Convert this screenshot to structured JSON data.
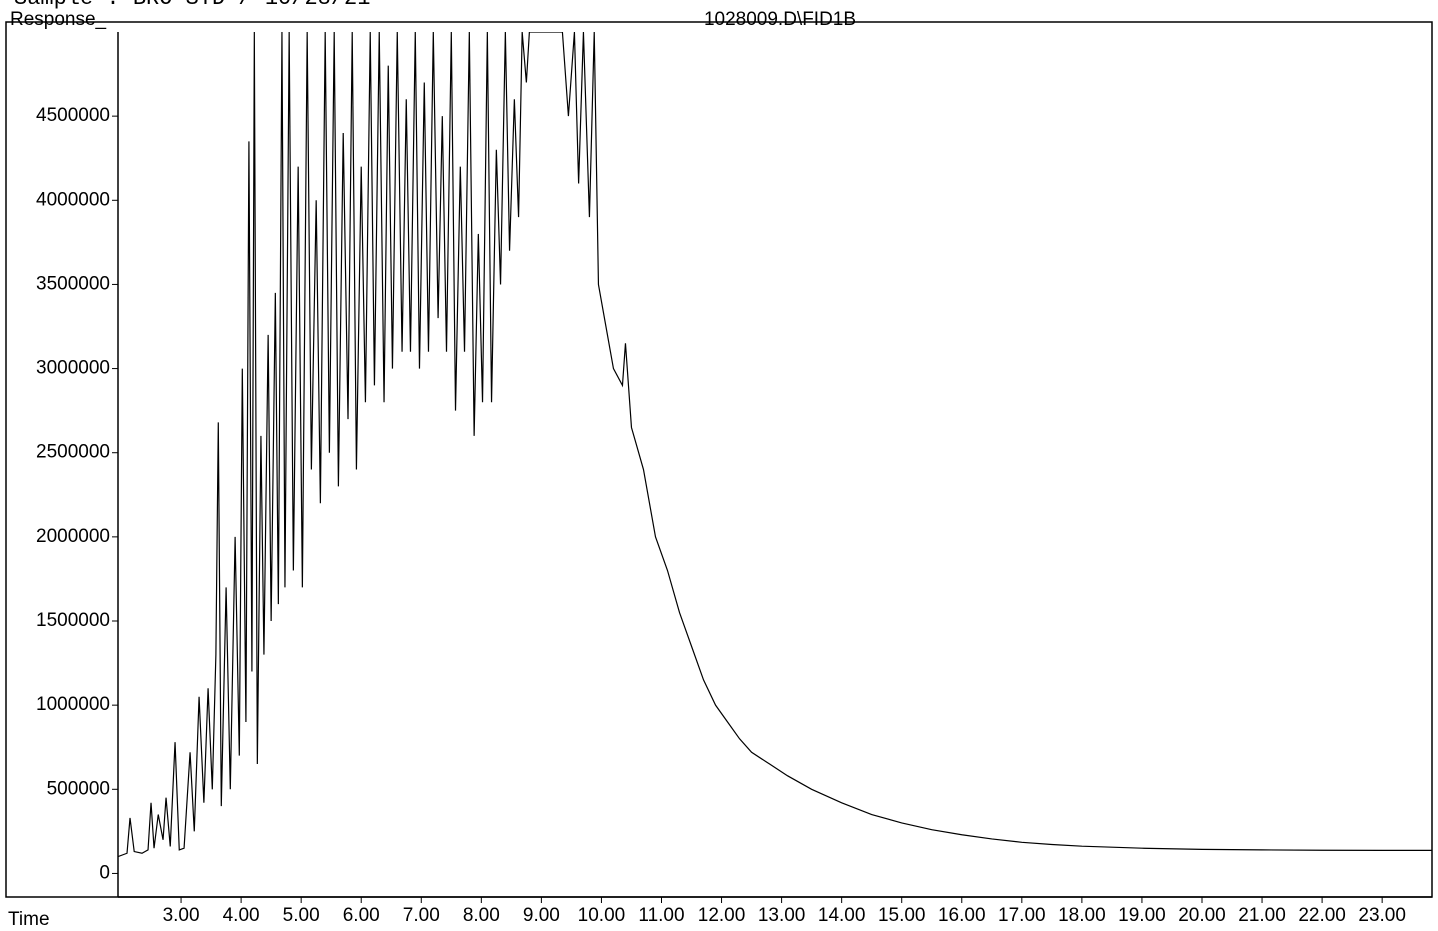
{
  "chart_data": {
    "type": "line",
    "header": "Sample      : BRO STD / 10/28/21",
    "title": "1028009.D\\FID1B",
    "ylabel": "Response_",
    "xlabel": "Time",
    "color": "#000000",
    "xlim": [
      1.95,
      23.83
    ],
    "ylim": [
      -140000,
      5000000
    ],
    "yticks": [
      0,
      500000,
      1000000,
      1500000,
      2000000,
      2500000,
      3000000,
      3500000,
      4000000,
      4500000
    ],
    "xticks": [
      {
        "value": 3,
        "label": "3.00"
      },
      {
        "value": 4,
        "label": "4.00"
      },
      {
        "value": 5,
        "label": "5.00"
      },
      {
        "value": 6,
        "label": "6.00"
      },
      {
        "value": 7,
        "label": "7.00"
      },
      {
        "value": 8,
        "label": "8.00"
      },
      {
        "value": 9,
        "label": "9.00"
      },
      {
        "value": 10,
        "label": "10.00"
      },
      {
        "value": 11,
        "label": "11.00"
      },
      {
        "value": 12,
        "label": "12.00"
      },
      {
        "value": 13,
        "label": "13.00"
      },
      {
        "value": 14,
        "label": "14.00"
      },
      {
        "value": 15,
        "label": "15.00"
      },
      {
        "value": 16,
        "label": "16.00"
      },
      {
        "value": 17,
        "label": "17.00"
      },
      {
        "value": 18,
        "label": "18.00"
      },
      {
        "value": 19,
        "label": "19.00"
      },
      {
        "value": 20,
        "label": "20.00"
      },
      {
        "value": 21,
        "label": "21.00"
      },
      {
        "value": 22,
        "label": "22.00"
      },
      {
        "value": 23,
        "label": "23.00"
      }
    ],
    "x": [
      1.95,
      2.1,
      2.15,
      2.22,
      2.35,
      2.45,
      2.5,
      2.55,
      2.62,
      2.7,
      2.75,
      2.82,
      2.9,
      2.97,
      3.05,
      3.15,
      3.22,
      3.3,
      3.38,
      3.45,
      3.52,
      3.58,
      3.62,
      3.67,
      3.75,
      3.82,
      3.9,
      3.97,
      4.02,
      4.08,
      4.13,
      4.18,
      4.22,
      4.27,
      4.33,
      4.38,
      4.45,
      4.5,
      4.57,
      4.62,
      4.68,
      4.73,
      4.8,
      4.87,
      4.95,
      5.02,
      5.1,
      5.17,
      5.25,
      5.32,
      5.4,
      5.47,
      5.55,
      5.62,
      5.7,
      5.78,
      5.85,
      5.92,
      6.0,
      6.07,
      6.15,
      6.22,
      6.3,
      6.38,
      6.45,
      6.52,
      6.6,
      6.68,
      6.75,
      6.82,
      6.9,
      6.97,
      7.05,
      7.12,
      7.2,
      7.28,
      7.35,
      7.42,
      7.5,
      7.57,
      7.65,
      7.72,
      7.8,
      7.88,
      7.95,
      8.02,
      8.1,
      8.17,
      8.25,
      8.32,
      8.4,
      8.47,
      8.55,
      8.62,
      8.68,
      8.75,
      8.8,
      9.0,
      9.3,
      9.35,
      9.45,
      9.55,
      9.62,
      9.7,
      9.8,
      9.88,
      9.95,
      10.05,
      10.2,
      10.35,
      10.4,
      10.5,
      10.7,
      10.9,
      11.1,
      11.3,
      11.5,
      11.7,
      11.9,
      12.1,
      12.3,
      12.5,
      12.8,
      13.1,
      13.5,
      14.0,
      14.5,
      15.0,
      15.5,
      16.0,
      16.5,
      17.0,
      17.5,
      18.0,
      19.0,
      20.0,
      21.0,
      22.0,
      23.0,
      23.83
    ],
    "values": [
      100000,
      120000,
      330000,
      130000,
      120000,
      140000,
      420000,
      150000,
      350000,
      200000,
      450000,
      160000,
      780000,
      140000,
      150000,
      720000,
      250000,
      1050000,
      420000,
      1100000,
      500000,
      1300000,
      2680000,
      400000,
      1700000,
      500000,
      2000000,
      700000,
      3000000,
      900000,
      4350000,
      1200000,
      5000000,
      650000,
      2600000,
      1300000,
      3200000,
      1500000,
      3450000,
      1600000,
      5000000,
      1700000,
      5000000,
      1800000,
      4200000,
      1700000,
      5000000,
      2400000,
      4000000,
      2200000,
      5000000,
      2500000,
      5000000,
      2300000,
      4400000,
      2700000,
      5000000,
      2400000,
      4200000,
      2800000,
      5000000,
      2900000,
      5000000,
      2800000,
      4800000,
      3000000,
      5000000,
      3100000,
      4600000,
      3100000,
      5000000,
      3000000,
      4700000,
      3100000,
      5000000,
      3300000,
      4500000,
      3100000,
      5000000,
      2750000,
      4200000,
      3100000,
      5000000,
      2600000,
      3800000,
      2800000,
      5000000,
      2800000,
      4300000,
      3500000,
      5000000,
      3700000,
      4600000,
      3900000,
      5000000,
      4700000,
      5000000,
      5000000,
      5000000,
      5000000,
      4500000,
      5000000,
      4100000,
      5000000,
      3900000,
      5000000,
      3500000,
      3300000,
      3000000,
      2900000,
      3150000,
      2650000,
      2400000,
      2000000,
      1800000,
      1550000,
      1350000,
      1150000,
      1000000,
      900000,
      800000,
      720000,
      650000,
      580000,
      500000,
      420000,
      350000,
      300000,
      260000,
      230000,
      205000,
      185000,
      172000,
      162000,
      150000,
      143000,
      140000,
      138000,
      137000,
      137000
    ]
  }
}
